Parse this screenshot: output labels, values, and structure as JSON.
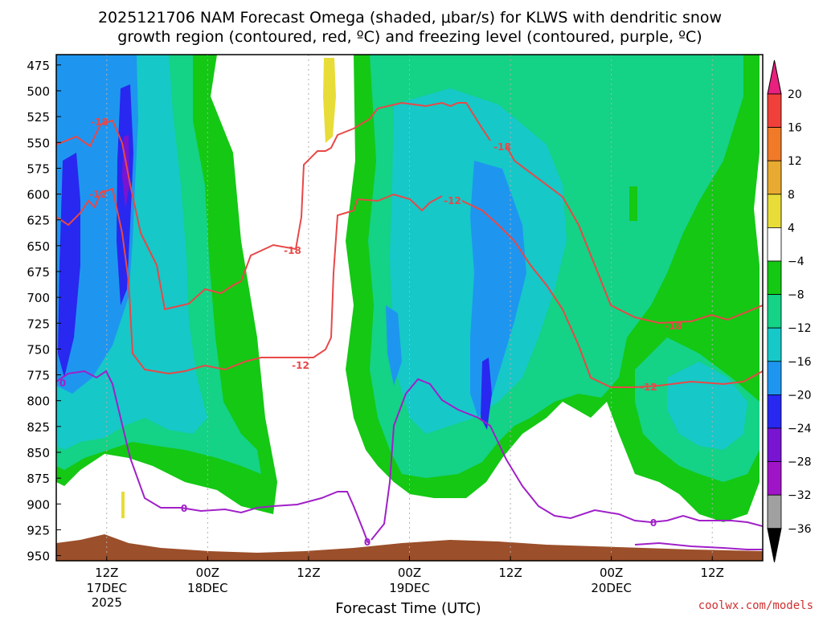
{
  "chart_data": {
    "type": "time-height contour",
    "title_line1": "2025121706 NAM Forecast Omega (shaded, μbar/s) for KLWS with dendritic snow",
    "title_line2": "growth region (contoured, red, ºC) and freezing level (contoured, purple, ºC)",
    "xlabel": "Forecast Time (UTC)",
    "credit": "coolwx.com/models",
    "y_axis": {
      "unit": "hPa",
      "range": [
        465,
        955
      ],
      "ticks": [
        "475",
        "500",
        "525",
        "550",
        "575",
        "600",
        "625",
        "650",
        "675",
        "700",
        "725",
        "750",
        "775",
        "800",
        "825",
        "850",
        "875",
        "900",
        "925",
        "950"
      ]
    },
    "x_axis": {
      "range_hours": [
        -5,
        65
      ],
      "ticks": [
        {
          "hour": 0,
          "line1": "12Z",
          "line2": "17DEC",
          "line3": "2025"
        },
        {
          "hour": 10,
          "line1": "00Z",
          "line2": "18DEC",
          "line3": ""
        },
        {
          "hour": 20,
          "line1": "12Z",
          "line2": "",
          "line3": ""
        },
        {
          "hour": 30,
          "line1": "00Z",
          "line2": "19DEC",
          "line3": ""
        },
        {
          "hour": 40,
          "line1": "12Z",
          "line2": "",
          "line3": ""
        },
        {
          "hour": 50,
          "line1": "00Z",
          "line2": "20DEC",
          "line3": ""
        },
        {
          "hour": 60,
          "line1": "12Z",
          "line2": "",
          "line3": ""
        }
      ]
    },
    "colorbar": {
      "labels": [
        "20",
        "16",
        "12",
        "8",
        "4",
        "−4",
        "−8",
        "−12",
        "−16",
        "−20",
        "−24",
        "−28",
        "−32",
        "−36"
      ],
      "bins": [
        {
          "color": "#e8207e"
        },
        {
          "color": "#f0403a"
        },
        {
          "color": "#f07a28"
        },
        {
          "color": "#e8aa30"
        },
        {
          "color": "#e8dc38"
        },
        {
          "color": "#ffffff"
        },
        {
          "color": "#14c814"
        },
        {
          "color": "#14d286"
        },
        {
          "color": "#16c8c8"
        },
        {
          "color": "#1e96f0"
        },
        {
          "color": "#2828f0"
        },
        {
          "color": "#7814d2"
        },
        {
          "color": "#a014c8"
        },
        {
          "color": "#a0a0a0"
        },
        {
          "color": "#000000"
        }
      ]
    },
    "contour_labels": [
      {
        "text": "-18",
        "color": "#e84848"
      },
      {
        "text": "-12",
        "color": "#e84848"
      },
      {
        "text": "-18",
        "color": "#e84848"
      },
      {
        "text": "-12",
        "color": "#e84848"
      },
      {
        "text": "-12",
        "color": "#e84848"
      },
      {
        "text": "-18",
        "color": "#e84848"
      },
      {
        "text": "-18",
        "color": "#e84848"
      },
      {
        "text": "-12",
        "color": "#e84848"
      },
      {
        "text": "0",
        "color": "#a020c8"
      },
      {
        "text": "0",
        "color": "#a020c8"
      },
      {
        "text": "0",
        "color": "#a020c8"
      },
      {
        "text": "0",
        "color": "#a020c8"
      }
    ]
  }
}
